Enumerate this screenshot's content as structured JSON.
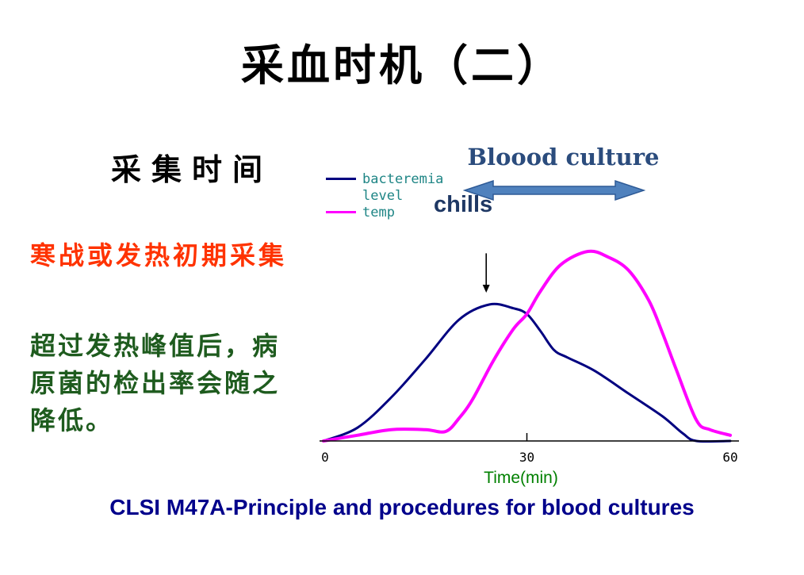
{
  "slide": {
    "title": "采血时机（二）",
    "collection_heading": "采集时间",
    "note_red": "寒战或发热初期采集",
    "note_green_lines": [
      "超过发热峰值后，病",
      "原菌的检出率会随之",
      "降低。"
    ],
    "blood_culture_label": "Bloood culture",
    "chills_label": "chills",
    "caption": "CLSI M47A-Principle and procedures for blood cultures",
    "colors": {
      "title": "#000000",
      "red_note": "#ff3300",
      "green_note": "#1e5b1e",
      "legend_text": "#1e8585",
      "blood_culture_label": "#2b4c7d",
      "chills_label": "#1f3864",
      "double_arrow_fill": "#4f81bd",
      "double_arrow_stroke": "#2e5a96",
      "caption": "#00008b",
      "xlabel": "#008000",
      "background": "#ffffff"
    }
  },
  "legend": {
    "entries": [
      {
        "lines": [
          "bacteremia",
          "level"
        ],
        "color": "#000080"
      },
      {
        "lines": [
          "temp"
        ],
        "color": "#ff00ff"
      }
    ]
  },
  "chart_data": {
    "type": "line",
    "title": "",
    "xlabel": "Time(min)",
    "ylabel": "",
    "xlim": [
      0,
      60
    ],
    "ylim": [
      0,
      100
    ],
    "x_ticks": [
      "0",
      "30",
      "60"
    ],
    "x_tick_values": [
      0,
      30,
      60
    ],
    "grid": false,
    "y_axis_visible": false,
    "legend_position": "top-left",
    "series": [
      {
        "name": "bacteremia level",
        "color": "#000080",
        "stroke_width": 3,
        "x": [
          0,
          5,
          10,
          15,
          20,
          24.5,
          28,
          30,
          32,
          34,
          36,
          40,
          45,
          50,
          53,
          55,
          60
        ],
        "values": [
          0,
          7,
          23,
          43,
          64,
          72,
          70,
          67,
          58,
          48,
          44,
          37,
          25,
          13,
          4,
          0,
          0
        ]
      },
      {
        "name": "temp",
        "color": "#ff00ff",
        "stroke_width": 4,
        "x": [
          0,
          5,
          10,
          15,
          18,
          20,
          22,
          25,
          28,
          30,
          32,
          35,
          39,
          42,
          45,
          48,
          50,
          52,
          55,
          57,
          60
        ],
        "values": [
          0,
          3,
          6,
          6,
          5,
          12,
          22,
          42,
          59,
          67,
          79,
          93,
          100,
          97,
          90,
          74,
          57,
          38,
          11,
          6,
          3
        ]
      }
    ],
    "annotations": [
      {
        "type": "down-arrow",
        "x": 24,
        "value_from": 99,
        "value_to": 82,
        "color": "#000000"
      },
      {
        "type": "double-arrow-label",
        "text": "Bloood culture"
      },
      {
        "type": "label",
        "text": "chills"
      }
    ]
  }
}
